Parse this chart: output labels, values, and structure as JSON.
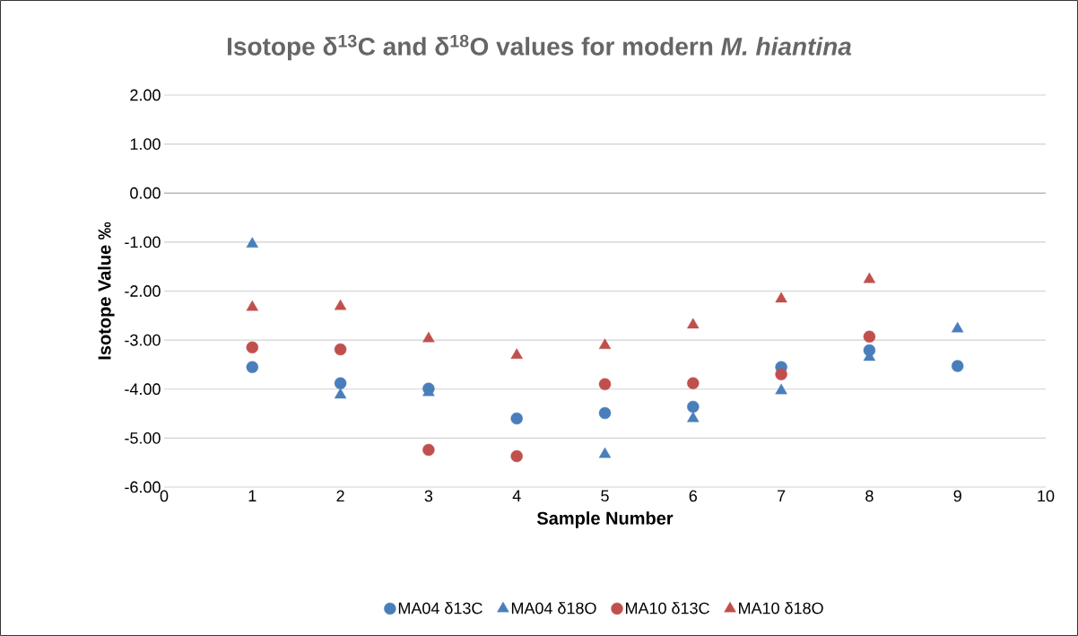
{
  "chart_data": {
    "type": "scatter",
    "title": "Isotope δ$^{13}$C and δ$^{18}$O values for modern *M. hiantina*",
    "xlabel": "Sample Number",
    "ylabel": "Isotope Value ‰",
    "x": [
      1,
      2,
      3,
      4,
      5,
      6,
      7,
      8,
      9
    ],
    "series": [
      {
        "name": "MA04 δ13C",
        "color": "#4a7ebb",
        "marker": "circle",
        "values": [
          -3.55,
          -3.88,
          -3.99,
          -4.6,
          -4.49,
          -4.36,
          -3.55,
          -3.21,
          -3.53
        ]
      },
      {
        "name": "MA04 δ18O",
        "color": "#4a7ebb",
        "marker": "triangle",
        "values": [
          -1.04,
          -4.12,
          -4.07,
          null,
          -5.33,
          -4.6,
          -4.03,
          -3.35,
          -2.77
        ]
      },
      {
        "name": "MA10 δ13C",
        "color": "#c0504d",
        "marker": "circle",
        "values": [
          -3.15,
          -3.19,
          -5.24,
          -5.37,
          -3.9,
          -3.88,
          -3.7,
          -2.93,
          null
        ]
      },
      {
        "name": "MA10 δ18O",
        "color": "#c0504d",
        "marker": "triangle",
        "values": [
          -2.33,
          -2.31,
          -2.97,
          -3.31,
          -3.11,
          -2.69,
          -2.16,
          -1.76,
          null
        ]
      }
    ],
    "xlim": [
      0,
      10
    ],
    "xticks": [
      0,
      1,
      2,
      3,
      4,
      5,
      6,
      7,
      8,
      9,
      10
    ],
    "ylim": [
      -6,
      2
    ],
    "yticks": [
      {
        "value": -6,
        "label": "-6.00"
      },
      {
        "value": -5,
        "label": "-5.00"
      },
      {
        "value": -4,
        "label": "-4.00"
      },
      {
        "value": -3,
        "label": "-3.00"
      },
      {
        "value": -2,
        "label": "-2.00"
      },
      {
        "value": -1,
        "label": "-1.00"
      },
      {
        "value": 0,
        "label": "0.00"
      },
      {
        "value": 1,
        "label": "1.00"
      },
      {
        "value": 2,
        "label": "2.00"
      }
    ],
    "grid": "y",
    "legend": "bottom"
  }
}
